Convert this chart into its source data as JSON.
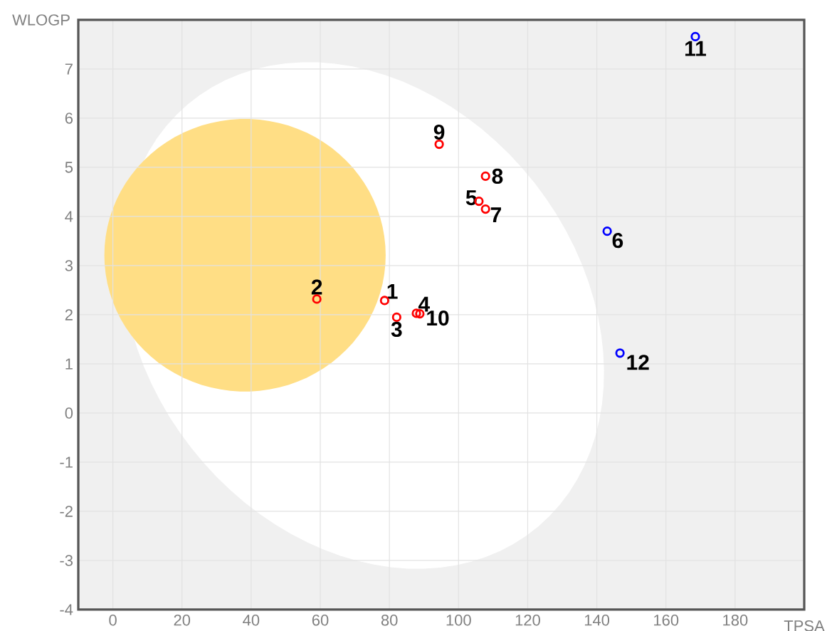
{
  "chart_data": {
    "type": "scatter",
    "xlabel": "TPSA",
    "ylabel": "WLOGP",
    "x": [
      78.6,
      59.0,
      82.1,
      87.8,
      105.9,
      143.0,
      107.8,
      107.8,
      94.4,
      88.8,
      168.5,
      146.7
    ],
    "values": [
      2.29,
      2.32,
      1.95,
      2.03,
      4.31,
      3.7,
      4.15,
      4.82,
      5.47,
      2.02,
      7.66,
      1.22
    ],
    "colors": [
      "#ff0000",
      "#ff0000",
      "#ff0000",
      "#ff0000",
      "#ff0000",
      "#0000ff",
      "#ff0000",
      "#ff0000",
      "#ff0000",
      "#ff0000",
      "#0000ff",
      "#0000ff"
    ],
    "marker": "circle",
    "grid": true,
    "xlim": [
      -10,
      200
    ],
    "ylim": [
      -4,
      8
    ],
    "xticks": [
      0,
      20,
      40,
      60,
      80,
      100,
      120,
      140,
      160,
      180
    ],
    "yticks": [
      -4,
      -3,
      -2,
      -1,
      0,
      1,
      2,
      3,
      4,
      5,
      6,
      7
    ],
    "annotations": [
      {
        "text": "1",
        "x": 78.6,
        "y": 2.29
      },
      {
        "text": "2",
        "x": 59.0,
        "y": 2.32
      },
      {
        "text": "3",
        "x": 82.1,
        "y": 1.95
      },
      {
        "text": "4",
        "x": 87.8,
        "y": 2.03
      },
      {
        "text": "5",
        "x": 105.9,
        "y": 4.31
      },
      {
        "text": "6",
        "x": 143.0,
        "y": 3.7
      },
      {
        "text": "7",
        "x": 107.8,
        "y": 4.15
      },
      {
        "text": "8",
        "x": 107.8,
        "y": 4.82
      },
      {
        "text": "9",
        "x": 94.4,
        "y": 5.47
      },
      {
        "text": "10",
        "x": 88.8,
        "y": 2.02
      },
      {
        "text": "11",
        "x": 168.5,
        "y": 7.66
      },
      {
        "text": "12",
        "x": 146.7,
        "y": 1.22
      }
    ]
  }
}
